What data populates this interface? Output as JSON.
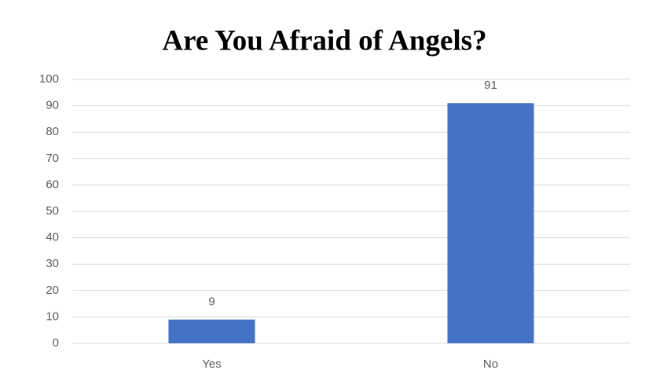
{
  "chart_data": {
    "type": "bar",
    "title": "Are You Afraid of Angels?",
    "categories": [
      "Yes",
      "No"
    ],
    "values": [
      9,
      91
    ],
    "color": "#4472c4",
    "ylim": [
      0,
      100
    ],
    "yticks": [
      0,
      10,
      20,
      30,
      40,
      50,
      60,
      70,
      80,
      90,
      100
    ],
    "grid": true,
    "data_labels": true
  }
}
